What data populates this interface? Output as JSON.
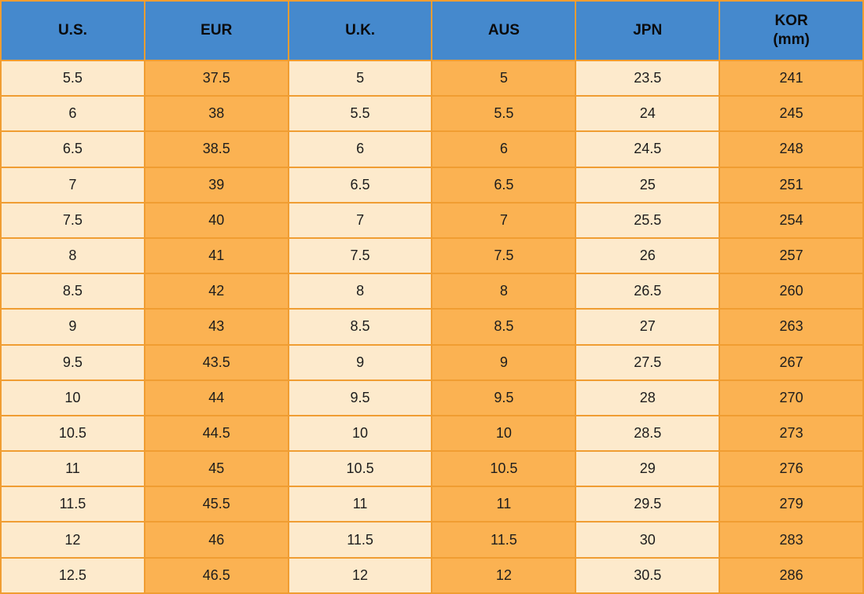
{
  "colors": {
    "header_bg": "#4589CD",
    "cell_cream": "#FDEACC",
    "cell_orange": "#FBB252",
    "grid_border": "#F09D32",
    "text": "#1d1d1d"
  },
  "chart_data": {
    "type": "table",
    "columns": [
      {
        "label": "U.S."
      },
      {
        "label": "EUR"
      },
      {
        "label": "U.K."
      },
      {
        "label": "AUS"
      },
      {
        "label": "JPN"
      },
      {
        "label": "KOR",
        "sub": "(mm)"
      }
    ],
    "rows": [
      [
        "5.5",
        "37.5",
        "5",
        "5",
        "23.5",
        "241"
      ],
      [
        "6",
        "38",
        "5.5",
        "5.5",
        "24",
        "245"
      ],
      [
        "6.5",
        "38.5",
        "6",
        "6",
        "24.5",
        "248"
      ],
      [
        "7",
        "39",
        "6.5",
        "6.5",
        "25",
        "251"
      ],
      [
        "7.5",
        "40",
        "7",
        "7",
        "25.5",
        "254"
      ],
      [
        "8",
        "41",
        "7.5",
        "7.5",
        "26",
        "257"
      ],
      [
        "8.5",
        "42",
        "8",
        "8",
        "26.5",
        "260"
      ],
      [
        "9",
        "43",
        "8.5",
        "8.5",
        "27",
        "263"
      ],
      [
        "9.5",
        "43.5",
        "9",
        "9",
        "27.5",
        "267"
      ],
      [
        "10",
        "44",
        "9.5",
        "9.5",
        "28",
        "270"
      ],
      [
        "10.5",
        "44.5",
        "10",
        "10",
        "28.5",
        "273"
      ],
      [
        "11",
        "45",
        "10.5",
        "10.5",
        "29",
        "276"
      ],
      [
        "11.5",
        "45.5",
        "11",
        "11",
        "29.5",
        "279"
      ],
      [
        "12",
        "46",
        "11.5",
        "11.5",
        "30",
        "283"
      ],
      [
        "12.5",
        "46.5",
        "12",
        "12",
        "30.5",
        "286"
      ]
    ]
  }
}
